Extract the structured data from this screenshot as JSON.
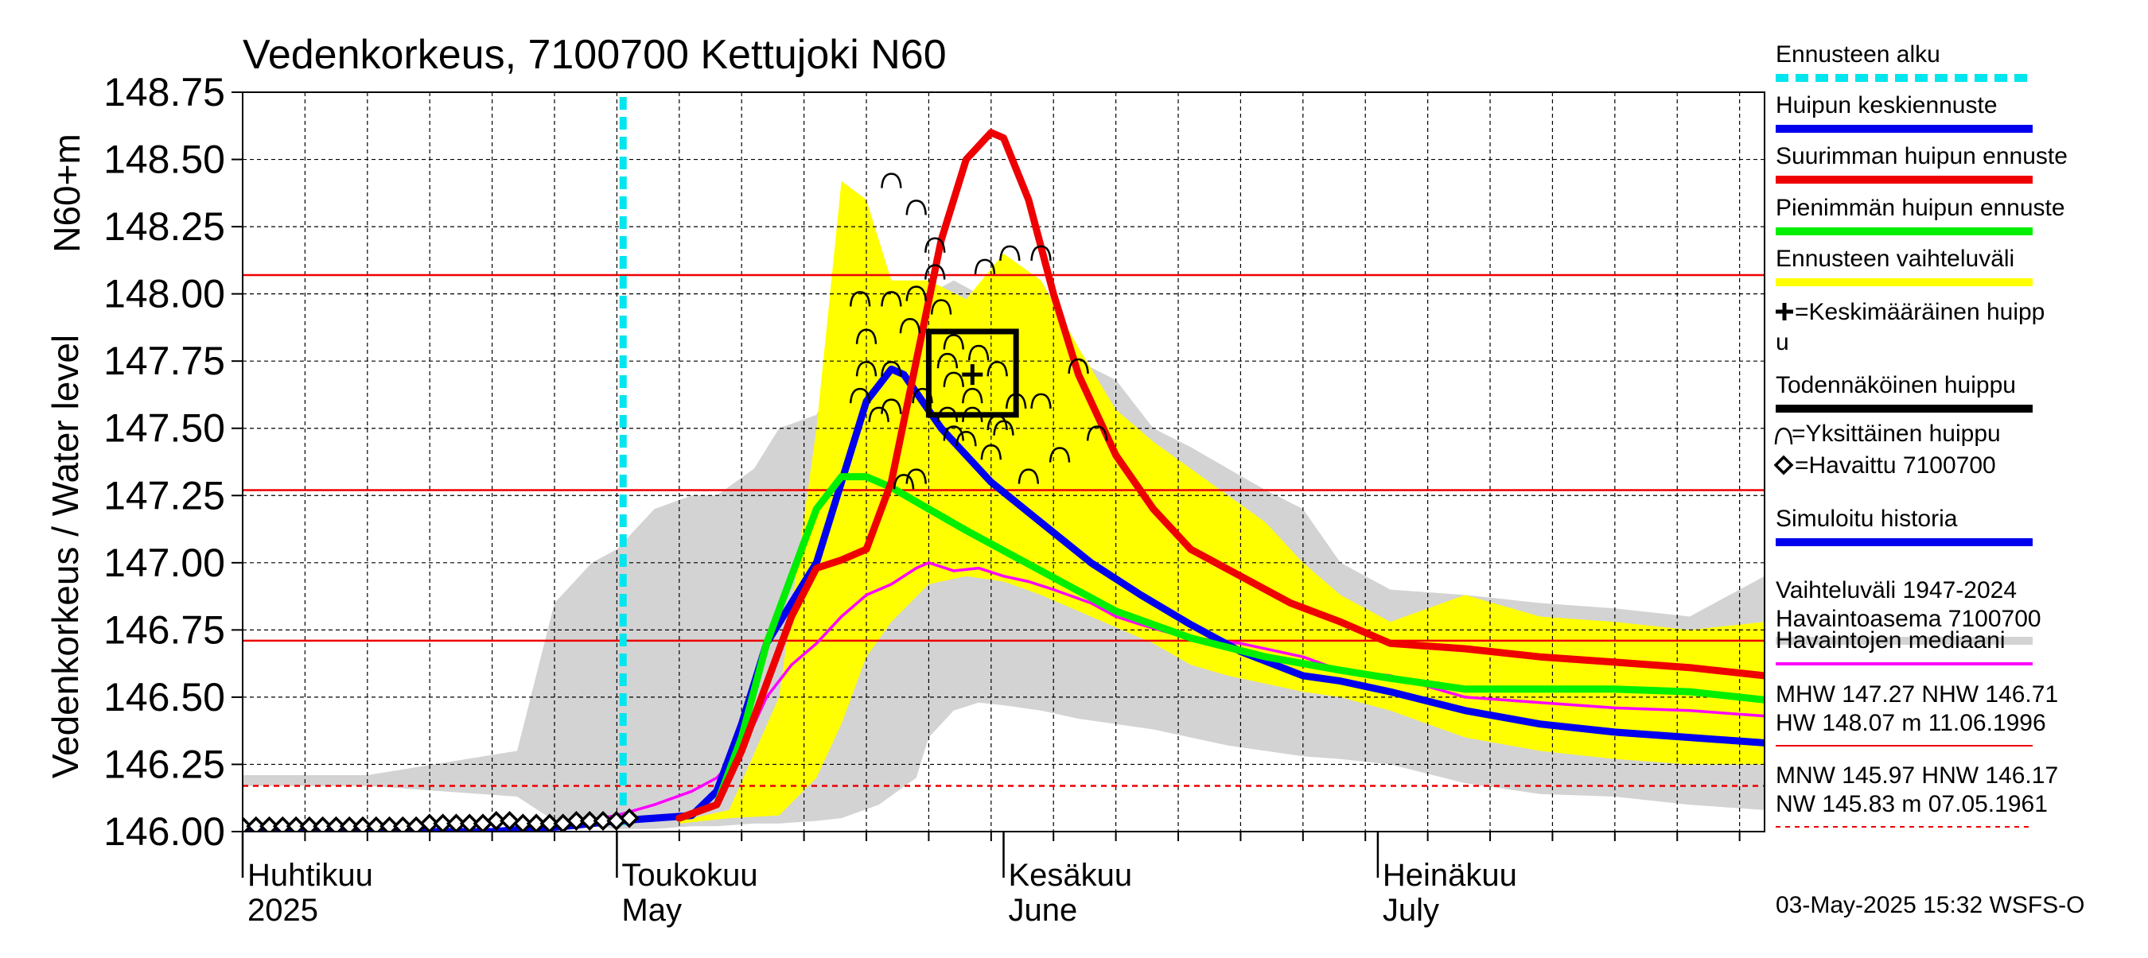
{
  "chart_data": {
    "type": "line",
    "title": "Vedenkorkeus, 7100700 Kettujoki N60",
    "ylabel_outer": "Vedenkorkeus / Water level",
    "ylabel_inner": "N60+m",
    "ylim": [
      146.0,
      148.75
    ],
    "yticks": [
      146.0,
      146.25,
      146.5,
      146.75,
      147.0,
      147.25,
      147.5,
      147.75,
      148.0,
      148.25,
      148.5,
      148.75
    ],
    "ytick_labels": [
      "146.00",
      "146.25",
      "146.50",
      "146.75",
      "147.00",
      "147.25",
      "147.50",
      "147.75",
      "148.00",
      "148.25",
      "148.50",
      "148.75"
    ],
    "x_domain_days": [
      0,
      122
    ],
    "month_labels": [
      {
        "day": 0,
        "fi": "Huhtikuu",
        "en": "2025"
      },
      {
        "day": 30,
        "fi": "Toukokuu",
        "en": "May"
      },
      {
        "day": 61,
        "fi": "Kesäkuu",
        "en": "June"
      },
      {
        "day": 91,
        "fi": "Heinäkuu",
        "en": "July"
      }
    ],
    "forecast_start_day": 30.5,
    "reference_lines": [
      {
        "name": "HW",
        "value": 148.07,
        "style": "solid"
      },
      {
        "name": "MHW",
        "value": 147.27,
        "style": "solid"
      },
      {
        "name": "NHW",
        "value": 146.71,
        "style": "solid"
      },
      {
        "name": "HNW",
        "value": 146.17,
        "style": "dashed"
      }
    ],
    "historical_band": {
      "name": "Vaihteluväli 1947-2024 Havaintoasema 7100700",
      "x": [
        0,
        10,
        22,
        25,
        28,
        30,
        33,
        36,
        38,
        41,
        43,
        46,
        48,
        51,
        54,
        55,
        57,
        59,
        61,
        64,
        67,
        70,
        73,
        76,
        79,
        82,
        85,
        88,
        92,
        98,
        104,
        110,
        116,
        122
      ],
      "upper": [
        146.21,
        146.21,
        146.3,
        146.85,
        147.0,
        147.05,
        147.2,
        147.25,
        147.25,
        147.35,
        147.5,
        147.55,
        147.75,
        147.7,
        147.85,
        148.0,
        148.05,
        148.0,
        147.97,
        147.8,
        147.75,
        147.68,
        147.5,
        147.43,
        147.35,
        147.27,
        147.2,
        147.0,
        146.9,
        146.88,
        146.85,
        146.83,
        146.8,
        146.95
      ],
      "lower": [
        146.17,
        146.17,
        146.13,
        146.04,
        146.02,
        146.01,
        146.01,
        146.02,
        146.02,
        146.03,
        146.03,
        146.04,
        146.05,
        146.1,
        146.2,
        146.35,
        146.45,
        146.48,
        146.47,
        146.45,
        146.42,
        146.4,
        146.38,
        146.35,
        146.32,
        146.3,
        146.28,
        146.27,
        146.25,
        146.18,
        146.14,
        146.13,
        146.1,
        146.08
      ]
    },
    "forecast_band": {
      "name": "Ennusteen vaihteluväli",
      "x": [
        35,
        39,
        43,
        46,
        48,
        50,
        52,
        55,
        58,
        61,
        64,
        67,
        70,
        73,
        76,
        79,
        82,
        85,
        88,
        92,
        98,
        104,
        110,
        116,
        122
      ],
      "upper": [
        146.04,
        146.08,
        146.5,
        147.5,
        148.42,
        148.35,
        148.05,
        148.05,
        147.98,
        148.15,
        148.05,
        147.8,
        147.57,
        147.45,
        147.35,
        147.25,
        147.15,
        147.0,
        146.88,
        146.78,
        146.88,
        146.8,
        146.78,
        146.75,
        146.78
      ],
      "lower": [
        146.03,
        146.05,
        146.06,
        146.2,
        146.4,
        146.65,
        146.78,
        146.92,
        146.95,
        146.93,
        146.88,
        146.82,
        146.76,
        146.7,
        146.62,
        146.58,
        146.55,
        146.52,
        146.5,
        146.45,
        146.35,
        146.3,
        146.27,
        146.25,
        146.25
      ]
    },
    "series": [
      {
        "name": "Havaintojen mediaani",
        "color": "#ff00ff",
        "x": [
          0,
          10,
          18,
          22,
          26,
          30,
          33,
          36,
          38,
          40,
          42,
          44,
          46,
          48,
          50,
          52,
          54,
          55,
          57,
          59,
          61,
          63,
          65,
          68,
          70,
          72,
          75,
          78,
          80,
          85,
          88,
          92,
          98,
          104,
          110,
          116,
          122
        ],
        "y": [
          146.0,
          146.0,
          146.0,
          146.01,
          146.03,
          146.06,
          146.1,
          146.15,
          146.2,
          146.3,
          146.5,
          146.62,
          146.7,
          146.8,
          146.88,
          146.92,
          146.98,
          147.0,
          146.97,
          146.98,
          146.95,
          146.93,
          146.9,
          146.85,
          146.8,
          146.77,
          146.73,
          146.71,
          146.7,
          146.65,
          146.6,
          146.58,
          146.5,
          146.48,
          146.46,
          146.45,
          146.43
        ]
      },
      {
        "name": "Simuloitu historia",
        "color": "#0000ee",
        "x": [
          0,
          10,
          20,
          26,
          30,
          33,
          36,
          38,
          40,
          42,
          44,
          46,
          48,
          50,
          52,
          53,
          56,
          60,
          64,
          68,
          72,
          76,
          80,
          85,
          88,
          92,
          98,
          104,
          110,
          116,
          122
        ],
        "y": [
          146.0,
          146.0,
          146.0,
          146.02,
          146.04,
          146.05,
          146.06,
          146.15,
          146.4,
          146.7,
          146.85,
          147.0,
          147.3,
          147.6,
          147.72,
          147.7,
          147.5,
          147.3,
          147.15,
          147.0,
          146.88,
          146.77,
          146.67,
          146.58,
          146.56,
          146.52,
          146.45,
          146.4,
          146.37,
          146.35,
          146.33
        ]
      },
      {
        "name": "Pienimmän huipun ennuste",
        "color": "#00ee00",
        "x": [
          35,
          38,
          40,
          42,
          44,
          46,
          48,
          50,
          52,
          55,
          58,
          62,
          66,
          70,
          76,
          82,
          88,
          92,
          98,
          104,
          110,
          116,
          122
        ],
        "y": [
          146.05,
          146.1,
          146.35,
          146.7,
          146.95,
          147.2,
          147.32,
          147.32,
          147.28,
          147.2,
          147.12,
          147.02,
          146.92,
          146.82,
          146.72,
          146.65,
          146.6,
          146.57,
          146.53,
          146.53,
          146.53,
          146.52,
          146.49
        ]
      },
      {
        "name": "Suurimman huipun ennuste",
        "color": "#ee0000",
        "x": [
          35,
          38,
          40,
          42,
          44,
          46,
          48,
          50,
          52,
          54,
          56,
          58,
          60,
          61,
          63,
          65,
          67,
          70,
          73,
          76,
          80,
          84,
          88,
          92,
          98,
          104,
          110,
          116,
          122
        ],
        "y": [
          146.05,
          146.1,
          146.3,
          146.55,
          146.8,
          146.98,
          147.01,
          147.05,
          147.3,
          147.75,
          148.2,
          148.5,
          148.6,
          148.58,
          148.35,
          148.0,
          147.7,
          147.4,
          147.2,
          147.05,
          146.95,
          146.85,
          146.78,
          146.7,
          146.68,
          146.65,
          146.63,
          146.61,
          146.58
        ]
      }
    ],
    "mean_peak": {
      "name": "Keskimääräinen huippu",
      "day": 58.5,
      "value": 147.7,
      "box_day_range": [
        55,
        62
      ],
      "box_value_range": [
        147.55,
        147.86
      ]
    },
    "individual_peaks": [
      [
        52.0,
        148.42
      ],
      [
        54.0,
        148.32
      ],
      [
        55.5,
        148.18
      ],
      [
        55.5,
        148.08
      ],
      [
        56.0,
        147.95
      ],
      [
        57.0,
        147.82
      ],
      [
        54.0,
        148.0
      ],
      [
        52.0,
        147.98
      ],
      [
        49.5,
        147.98
      ],
      [
        53.5,
        147.88
      ],
      [
        50.0,
        147.84
      ],
      [
        56.5,
        147.75
      ],
      [
        52.0,
        147.72
      ],
      [
        50.0,
        147.72
      ],
      [
        54.5,
        147.62
      ],
      [
        52.0,
        147.58
      ],
      [
        56.5,
        147.55
      ],
      [
        58.0,
        147.46
      ],
      [
        57.0,
        147.48
      ],
      [
        61.0,
        147.5
      ],
      [
        58.5,
        147.62
      ],
      [
        60.5,
        147.72
      ],
      [
        62.0,
        147.6
      ],
      [
        59.0,
        147.78
      ],
      [
        59.5,
        148.1
      ],
      [
        61.5,
        148.15
      ],
      [
        64.0,
        148.15
      ],
      [
        67.0,
        147.73
      ],
      [
        68.5,
        147.48
      ],
      [
        65.5,
        147.4
      ],
      [
        63.0,
        147.32
      ],
      [
        54.0,
        147.32
      ],
      [
        53.0,
        147.3
      ],
      [
        49.5,
        147.62
      ],
      [
        51.0,
        147.55
      ],
      [
        58.5,
        147.55
      ],
      [
        60.5,
        147.52
      ],
      [
        64.0,
        147.6
      ],
      [
        60.0,
        147.41
      ],
      [
        57.0,
        147.68
      ]
    ],
    "observations": {
      "name": "Havaittu 7100700",
      "x": [
        0,
        1.07,
        2.14,
        3.21,
        4.28,
        5.35,
        6.42,
        7.49,
        8.56,
        9.63,
        10.7,
        11.77,
        12.84,
        13.91,
        14.98,
        16.05,
        17.12,
        18.19,
        19.26,
        20.33,
        21.4,
        22.47,
        23.54,
        24.61,
        25.68,
        26.75,
        27.82,
        28.89,
        29.96,
        31.0
      ],
      "y": [
        146.02,
        146.02,
        146.02,
        146.02,
        146.02,
        146.02,
        146.02,
        146.02,
        146.02,
        146.02,
        146.02,
        146.02,
        146.02,
        146.02,
        146.03,
        146.03,
        146.03,
        146.03,
        146.03,
        146.04,
        146.04,
        146.03,
        146.03,
        146.03,
        146.03,
        146.04,
        146.04,
        146.04,
        146.04,
        146.05
      ]
    },
    "legend": [
      {
        "label": "Ennusteen alku",
        "color": "#00e5ee",
        "style": "dashed"
      },
      {
        "label": "Huipun keskiennuste",
        "color": "#0000ee",
        "style": "thick"
      },
      {
        "label": "Suurimman huipun ennuste",
        "color": "#ee0000",
        "style": "thick"
      },
      {
        "label": "Pienimmän huipun ennuste",
        "color": "#00ee00",
        "style": "thick"
      },
      {
        "label": "Ennusteen vaihteluväli",
        "color": "#ffff00",
        "style": "thick"
      },
      {
        "label": "=Keskimääräinen huipp",
        "label2": "u",
        "color": "#000000",
        "style": "plus"
      },
      {
        "label": "Todennäköinen huippu",
        "color": "#000000",
        "style": "thick"
      },
      {
        "label": "=Yksittäinen huippu",
        "color": "#000000",
        "style": "arc"
      },
      {
        "label": "=Havaittu 7100700",
        "color": "#000000",
        "style": "diamond"
      },
      {
        "label": "Simuloitu historia",
        "color": "#0000ee",
        "style": "thick"
      },
      {
        "label": "Vaihteluväli 1947-2024",
        "label2": " Havaintoasema 7100700",
        "color": "#d3d3d3",
        "style": "thick"
      },
      {
        "label": "Havaintojen mediaani",
        "color": "#ff00ff",
        "style": "thin"
      }
    ],
    "stats": {
      "line1": "MHW 147.27 NHW 146.71",
      "line2": "HW 148.07 m 11.06.1996",
      "line3": "MNW 145.97 HNW 146.17",
      "line4": "NW 145.83 m 07.05.1961"
    },
    "footer": "03-May-2025 15:32 WSFS-O"
  }
}
